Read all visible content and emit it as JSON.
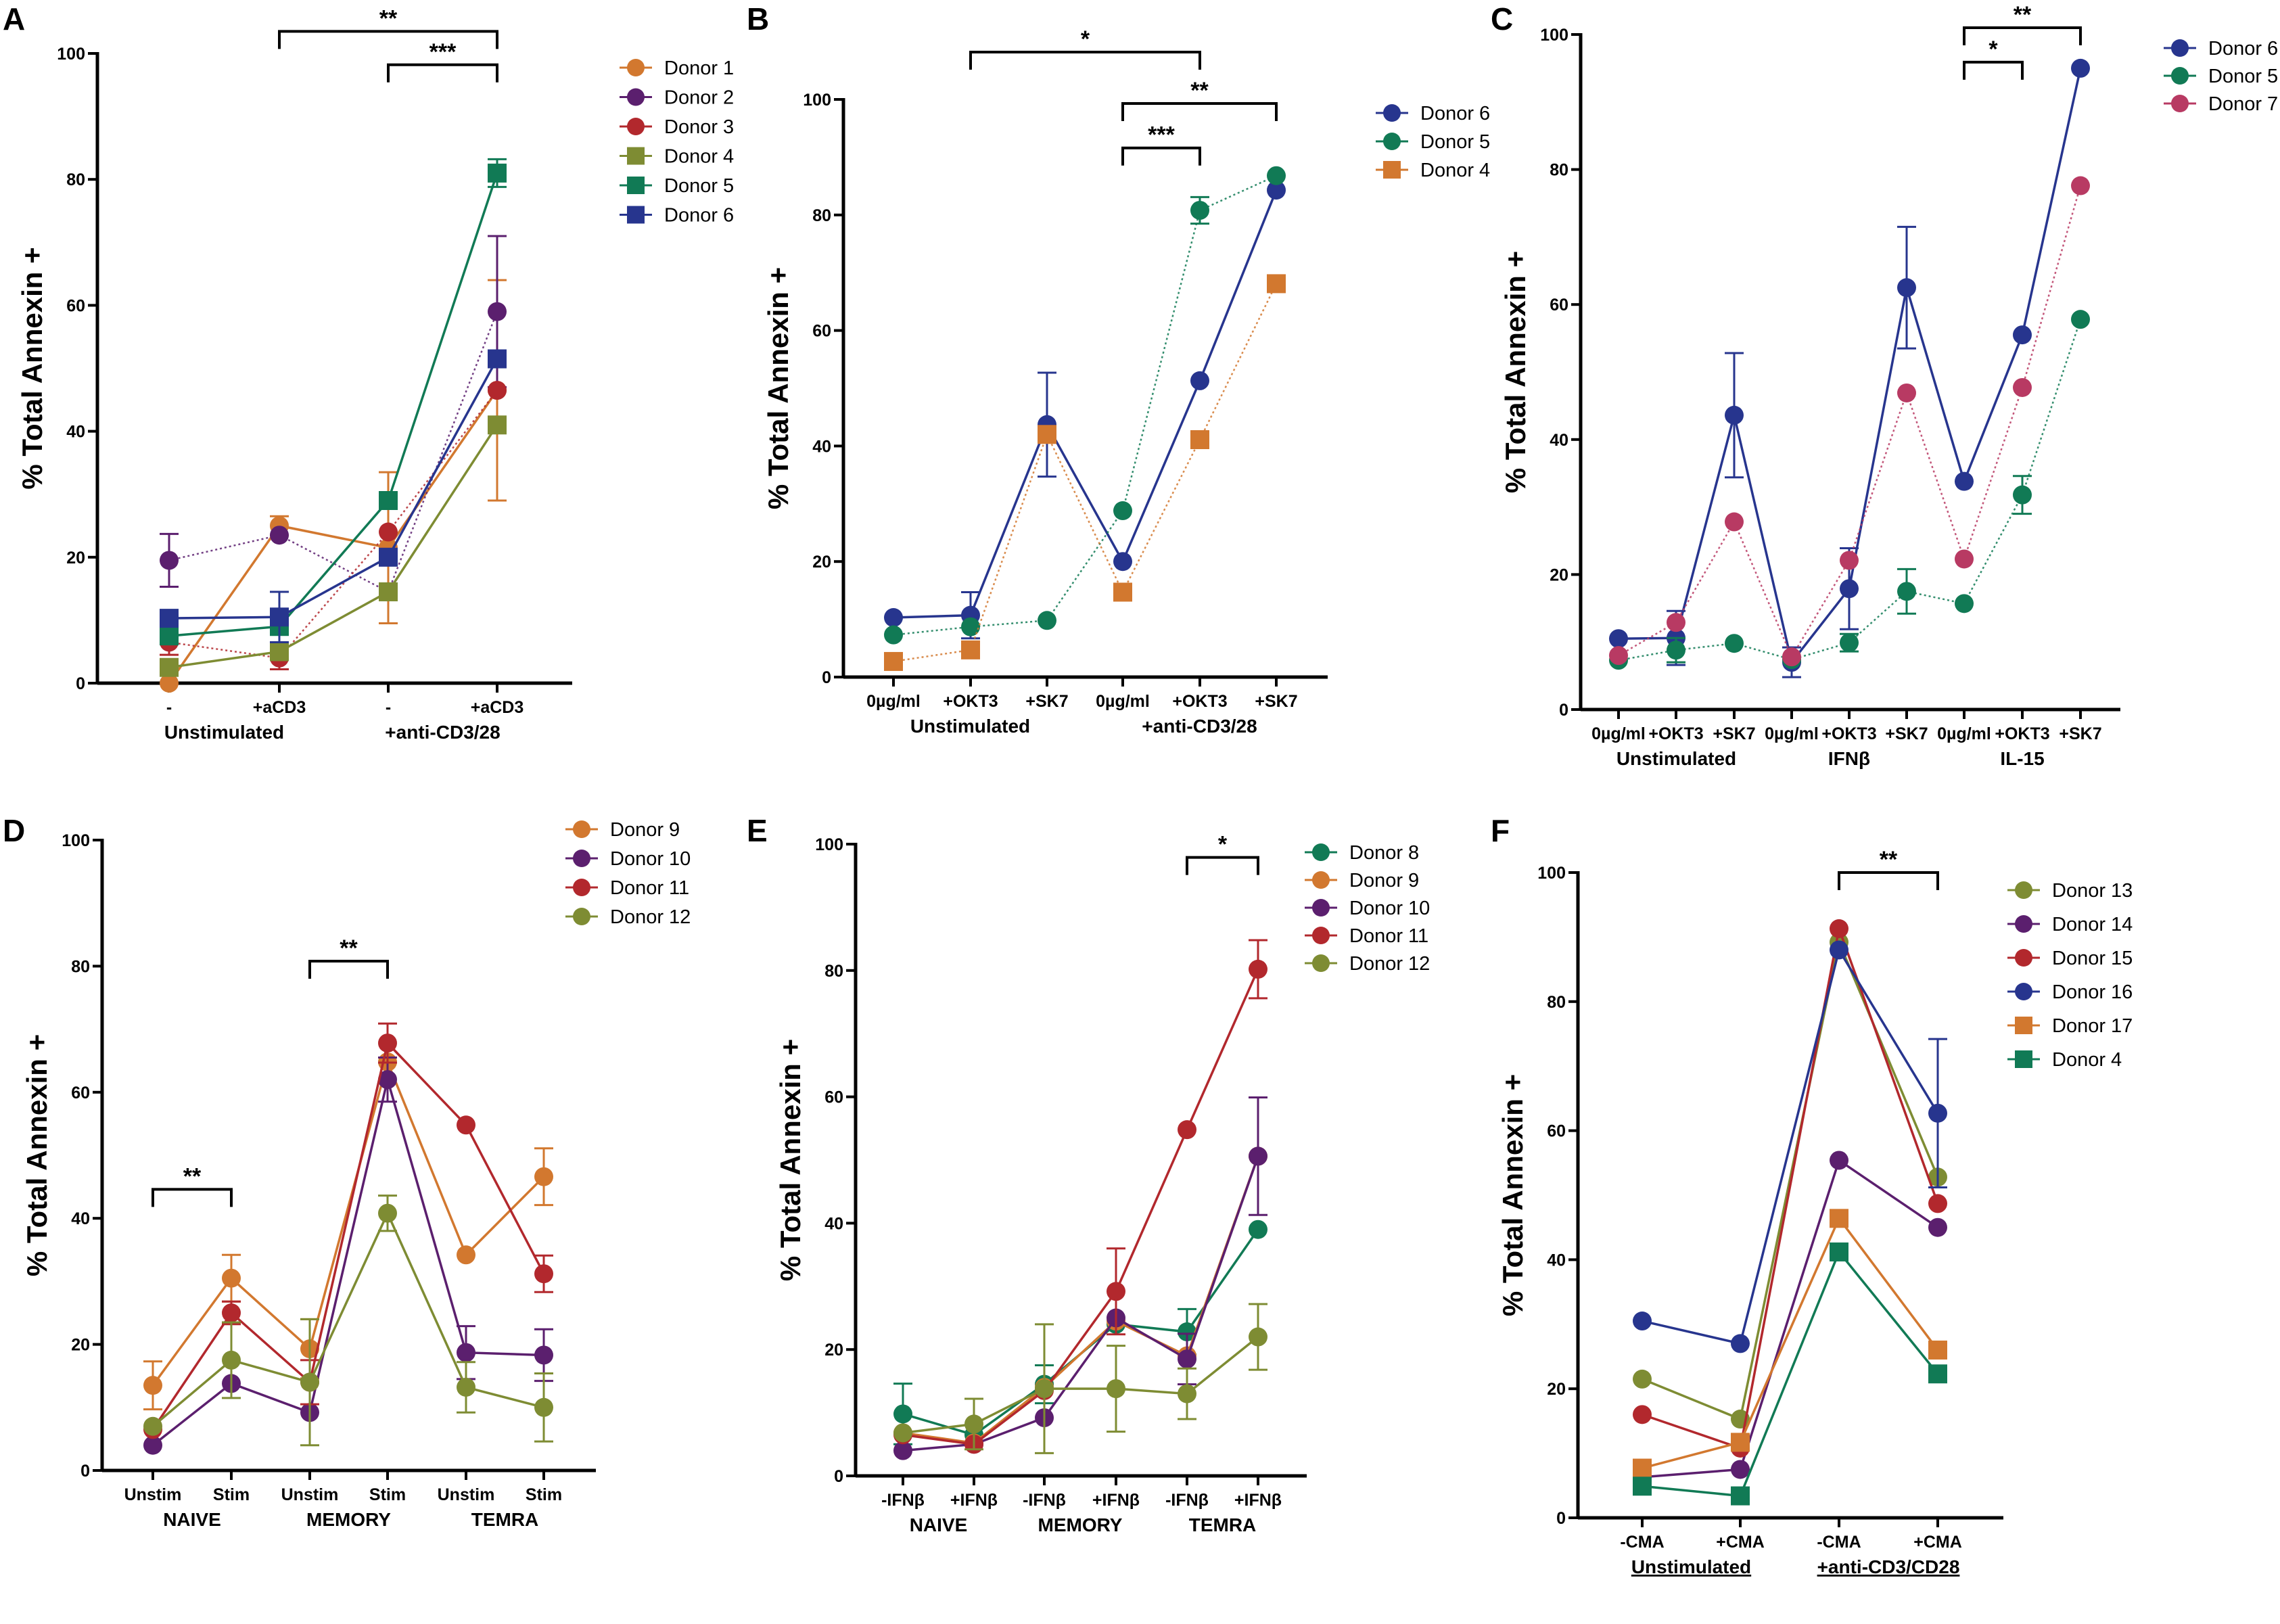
{
  "colors": {
    "orange": "#D2782F",
    "purple": "#5B1F6E",
    "red": "#B2282D",
    "olive": "#7E8C33",
    "green": "#117A55",
    "blue": "#27358E",
    "pink": "#B83A63"
  },
  "chart_data": [
    {
      "panel": "A",
      "type": "line",
      "ylabel": "% Total Annexin +",
      "ylim": [
        0,
        100
      ],
      "yticks": [
        0,
        20,
        40,
        60,
        80,
        100
      ],
      "legend": "right",
      "categories": [
        "-",
        "+aCD3",
        "-",
        "+aCD3"
      ],
      "groups": [
        {
          "label": "Unstimulated",
          "from": 0,
          "to": 1
        },
        {
          "label": "+anti-CD3/28",
          "from": 2,
          "to": 3
        }
      ],
      "series": [
        {
          "name": "Donor 1",
          "color": "#D2782F",
          "marker": "circle",
          "line": "solid",
          "values": [
            0,
            25,
            21.5,
            46.5
          ],
          "errors": [
            null,
            1.5,
            12,
            17.5
          ]
        },
        {
          "name": "Donor 2",
          "color": "#5B1F6E",
          "marker": "circle",
          "line": "dotted",
          "values": [
            19.5,
            23.5,
            14.5,
            59
          ],
          "errors": [
            4.2,
            null,
            null,
            12
          ]
        },
        {
          "name": "Donor 3",
          "color": "#B2282D",
          "marker": "circle",
          "line": "dotted",
          "values": [
            6.5,
            4,
            24,
            46.5
          ],
          "errors": [
            2,
            1.8,
            null,
            null
          ]
        },
        {
          "name": "Donor 4",
          "color": "#7E8C33",
          "marker": "square",
          "line": "solid",
          "values": [
            2.5,
            5,
            14.5,
            41
          ],
          "errors": [
            null,
            null,
            null,
            null
          ]
        },
        {
          "name": "Donor 5",
          "color": "#117A55",
          "marker": "square",
          "line": "solid",
          "values": [
            7.5,
            9,
            29,
            81
          ],
          "errors": [
            null,
            null,
            null,
            2.2
          ]
        },
        {
          "name": "Donor 6",
          "color": "#27358E",
          "marker": "square",
          "line": "solid",
          "values": [
            10.3,
            10.5,
            20,
            51.5
          ],
          "errors": [
            null,
            4,
            null,
            null
          ]
        }
      ],
      "annotations": [
        {
          "label": "**",
          "from": 1,
          "to": 3,
          "y": 103.5
        },
        {
          "label": "***",
          "from": 2,
          "to": 3,
          "y": 98.2
        }
      ]
    },
    {
      "panel": "B",
      "type": "line",
      "ylabel": "% Total Annexin +",
      "ylim": [
        0,
        100
      ],
      "yticks": [
        0,
        20,
        40,
        60,
        80,
        100
      ],
      "legend": "right",
      "categories": [
        "0µg/ml",
        "+OKT3",
        "+SK7",
        "0µg/ml",
        "+OKT3",
        "+SK7"
      ],
      "groups": [
        {
          "label": "Unstimulated",
          "from": 0,
          "to": 2
        },
        {
          "label": "+anti-CD3/28",
          "from": 3,
          "to": 5
        }
      ],
      "series": [
        {
          "name": "Donor 6",
          "color": "#27358E",
          "marker": "circle",
          "line": "solid",
          "values": [
            10.3,
            10.7,
            43.7,
            20,
            51.3,
            84.3
          ],
          "errors": [
            null,
            4,
            9,
            null,
            null,
            null
          ]
        },
        {
          "name": "Donor 5",
          "color": "#117A55",
          "marker": "circle",
          "line": "dotted",
          "values": [
            7.3,
            8.7,
            9.8,
            28.8,
            80.8,
            86.8
          ],
          "errors": [
            null,
            null,
            null,
            null,
            2.3,
            null
          ]
        },
        {
          "name": "Donor 4",
          "color": "#D2782F",
          "marker": "square",
          "line": "dotted",
          "values": [
            2.7,
            4.7,
            42,
            14.7,
            41.1,
            68.1
          ],
          "errors": [
            null,
            null,
            null,
            null,
            null,
            null
          ]
        }
      ],
      "annotations": [
        {
          "label": "*",
          "from": 1,
          "to": 4,
          "y": 108.2
        },
        {
          "label": "**",
          "from": 3,
          "to": 5,
          "y": 99.3
        },
        {
          "label": "***",
          "from": 3,
          "to": 4,
          "y": 91.6
        }
      ]
    },
    {
      "panel": "C",
      "type": "line",
      "ylabel": "% Total Annexin +",
      "ylim": [
        0,
        100
      ],
      "yticks": [
        0,
        20,
        40,
        60,
        80,
        100
      ],
      "legend": "right",
      "categories": [
        "0µg/ml",
        "+OKT3",
        "+SK7",
        "0µg/ml",
        "+OKT3",
        "+SK7",
        "0µg/ml",
        "+OKT3",
        "+SK7"
      ],
      "groups": [
        {
          "label": "Unstimulated",
          "from": 0,
          "to": 2
        },
        {
          "label": "IFNβ",
          "from": 3,
          "to": 5
        },
        {
          "label": "IL-15",
          "from": 6,
          "to": 8
        }
      ],
      "series": [
        {
          "name": "Donor 6",
          "color": "#27358E",
          "marker": "circle",
          "line": "solid",
          "values": [
            10.5,
            10.6,
            43.6,
            7,
            17.9,
            62.5,
            33.8,
            55.5,
            95
          ],
          "errors": [
            null,
            4,
            9.2,
            2.2,
            6,
            9,
            null,
            null,
            null
          ]
        },
        {
          "name": "Donor 5",
          "color": "#117A55",
          "marker": "circle",
          "line": "dotted",
          "values": [
            7.3,
            8.8,
            9.8,
            7.4,
            9.9,
            17.5,
            15.7,
            31.8,
            57.8
          ],
          "errors": [
            null,
            1.8,
            null,
            null,
            1.3,
            3.3,
            null,
            2.8,
            null
          ]
        },
        {
          "name": "Donor 7",
          "color": "#B83A63",
          "marker": "circle",
          "line": "dotted",
          "values": [
            8,
            12.9,
            27.8,
            7.8,
            22.1,
            46.9,
            22.3,
            47.7,
            77.6
          ],
          "errors": [
            null,
            null,
            null,
            null,
            null,
            null,
            null,
            null,
            null
          ]
        }
      ],
      "annotations": [
        {
          "label": "**",
          "from": 6,
          "to": 8,
          "y": 101
        },
        {
          "label": "*",
          "from": 6,
          "to": 7,
          "y": 95.9
        }
      ]
    },
    {
      "panel": "D",
      "type": "line",
      "ylabel": "% Total Annexin +",
      "ylim": [
        0,
        100
      ],
      "yticks": [
        0,
        20,
        40,
        60,
        80,
        100
      ],
      "legend": "top-right",
      "categories": [
        "Unstim",
        "Stim",
        "Unstim",
        "Stim",
        "Unstim",
        "Stim"
      ],
      "groups": [
        {
          "label": "NAIVE",
          "from": 0,
          "to": 1
        },
        {
          "label": "MEMORY",
          "from": 2,
          "to": 3
        },
        {
          "label": "TEMRA",
          "from": 4,
          "to": 5
        }
      ],
      "series": [
        {
          "name": "Donor 9",
          "color": "#D2782F",
          "marker": "circle",
          "line": "solid",
          "values": [
            13.5,
            30.5,
            19.3,
            64.8,
            34.2,
            46.6
          ],
          "errors": [
            3.8,
            3.7,
            4.7,
            null,
            null,
            4.5
          ]
        },
        {
          "name": "Donor 10",
          "color": "#5B1F6E",
          "marker": "circle",
          "line": "solid",
          "values": [
            4,
            13.8,
            9.2,
            62,
            18.7,
            18.3
          ],
          "errors": [
            null,
            null,
            null,
            3.5,
            4.2,
            4.1
          ]
        },
        {
          "name": "Donor 11",
          "color": "#B2282D",
          "marker": "circle",
          "line": "solid",
          "values": [
            6.5,
            25,
            14,
            67.8,
            54.8,
            31.2
          ],
          "errors": [
            null,
            1.8,
            3.5,
            3.1,
            null,
            2.9
          ]
        },
        {
          "name": "Donor 12",
          "color": "#7E8C33",
          "marker": "circle",
          "line": "solid",
          "values": [
            7,
            17.5,
            14,
            40.8,
            13.2,
            10
          ],
          "errors": [
            null,
            6,
            10,
            2.8,
            4,
            5.4
          ]
        }
      ],
      "annotations": [
        {
          "label": "**",
          "from": 0,
          "to": 1,
          "y": 44.6
        },
        {
          "label": "**",
          "from": 2,
          "to": 3,
          "y": 80.8
        }
      ]
    },
    {
      "panel": "E",
      "type": "line",
      "ylabel": "% Total Annexin +",
      "ylim": [
        0,
        100
      ],
      "yticks": [
        0,
        20,
        40,
        60,
        80,
        100
      ],
      "legend": "top-right",
      "categories": [
        "-IFNβ",
        "+IFNβ",
        "-IFNβ",
        "+IFNβ",
        "-IFNβ",
        "+IFNβ"
      ],
      "groups": [
        {
          "label": "NAIVE",
          "from": 0,
          "to": 1
        },
        {
          "label": "MEMORY",
          "from": 2,
          "to": 3
        },
        {
          "label": "TEMRA",
          "from": 4,
          "to": 5
        }
      ],
      "series": [
        {
          "name": "Donor 8",
          "color": "#117A55",
          "marker": "circle",
          "line": "solid",
          "values": [
            9.8,
            6.5,
            14.5,
            24,
            22.8,
            39
          ],
          "errors": [
            4.8,
            null,
            3,
            null,
            3.6,
            null
          ]
        },
        {
          "name": "Donor 9",
          "color": "#D2782F",
          "marker": "circle",
          "line": "solid",
          "values": [
            6.8,
            5.2,
            14,
            24.5,
            19,
            50.6
          ],
          "errors": [
            null,
            null,
            null,
            null,
            null,
            null
          ]
        },
        {
          "name": "Donor 10",
          "color": "#5B1F6E",
          "marker": "circle",
          "line": "solid",
          "values": [
            4,
            5,
            9.2,
            25,
            18.5,
            50.6
          ],
          "errors": [
            null,
            null,
            null,
            null,
            4,
            9.3
          ]
        },
        {
          "name": "Donor 11",
          "color": "#B2282D",
          "marker": "circle",
          "line": "solid",
          "values": [
            6.5,
            5,
            13.5,
            29.2,
            54.8,
            80.2
          ],
          "errors": [
            null,
            null,
            null,
            6.8,
            null,
            4.6
          ]
        },
        {
          "name": "Donor 12",
          "color": "#7E8C33",
          "marker": "circle",
          "line": "solid",
          "values": [
            6.8,
            8.2,
            13.8,
            13.8,
            13,
            22
          ],
          "errors": [
            null,
            4,
            10.2,
            6.8,
            4,
            5.2
          ]
        }
      ],
      "annotations": [
        {
          "label": "*",
          "from": 4,
          "to": 5,
          "y": 97.9
        }
      ]
    },
    {
      "panel": "F",
      "type": "line",
      "ylabel": "% Total Annexin +",
      "ylim": [
        0,
        100
      ],
      "yticks": [
        0,
        20,
        40,
        60,
        80,
        100
      ],
      "legend": "right",
      "categories": [
        "-CMA",
        "+CMA",
        "-CMA",
        "+CMA"
      ],
      "groups": [
        {
          "label": "Unstimulated",
          "from": 0,
          "to": 1,
          "underline": true
        },
        {
          "label": "+anti-CD3/CD28",
          "from": 2,
          "to": 3,
          "underline": true
        }
      ],
      "series": [
        {
          "name": "Donor 13",
          "color": "#7E8C33",
          "marker": "circle",
          "line": "solid",
          "values": [
            21.5,
            15.3,
            89.2,
            52.8
          ],
          "errors": [
            null,
            null,
            null,
            null
          ]
        },
        {
          "name": "Donor 14",
          "color": "#5B1F6E",
          "marker": "circle",
          "line": "solid",
          "values": [
            6.3,
            7.5,
            55.4,
            45
          ],
          "errors": [
            null,
            null,
            null,
            null
          ]
        },
        {
          "name": "Donor 15",
          "color": "#B2282D",
          "marker": "circle",
          "line": "solid",
          "values": [
            16,
            10.8,
            91.3,
            48.7
          ],
          "errors": [
            null,
            null,
            null,
            null
          ]
        },
        {
          "name": "Donor 16",
          "color": "#27358E",
          "marker": "circle",
          "line": "solid",
          "values": [
            30.5,
            27,
            88,
            62.7
          ],
          "errors": [
            null,
            null,
            null,
            11.5
          ]
        },
        {
          "name": "Donor 17",
          "color": "#D2782F",
          "marker": "square",
          "line": "solid",
          "values": [
            7.7,
            11.7,
            46.4,
            26
          ],
          "errors": [
            null,
            null,
            null,
            null
          ]
        },
        {
          "name": "Donor 4",
          "color": "#117A55",
          "marker": "square",
          "line": "solid",
          "values": [
            4.9,
            3.4,
            41.2,
            22.3
          ],
          "errors": [
            null,
            null,
            null,
            null
          ]
        }
      ],
      "annotations": [
        {
          "label": "**",
          "from": 2,
          "to": 3,
          "y": 100
        }
      ]
    }
  ]
}
